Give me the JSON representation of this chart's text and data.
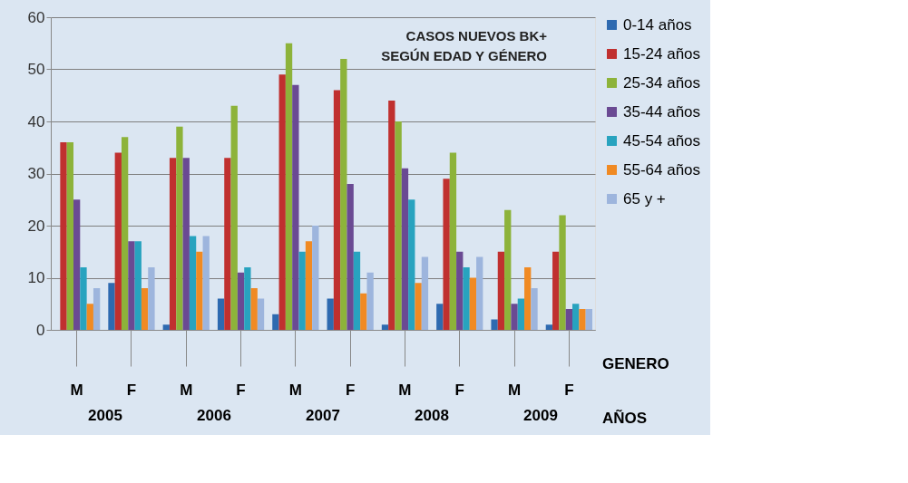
{
  "chart_data": {
    "type": "bar",
    "title": "CASOS NUEVOS BK+\nSEGÚN EDAD Y GÉNERO",
    "categories": [
      "M",
      "F",
      "M",
      "F",
      "M",
      "F",
      "M",
      "F",
      "M",
      "F"
    ],
    "series": [
      {
        "name": "0-14 años",
        "color": "#2e6ab0",
        "values": [
          0,
          9,
          1,
          6,
          3,
          6,
          1,
          5,
          2,
          1
        ]
      },
      {
        "name": "15-24 años",
        "color": "#c0302f",
        "values": [
          36,
          34,
          33,
          33,
          49,
          46,
          44,
          29,
          15,
          15
        ]
      },
      {
        "name": "25-34 años",
        "color": "#8db33a",
        "values": [
          36,
          37,
          39,
          43,
          55,
          52,
          40,
          34,
          23,
          22
        ]
      },
      {
        "name": "35-44 años",
        "color": "#6a4a93",
        "values": [
          25,
          17,
          33,
          11,
          47,
          28,
          31,
          15,
          5,
          4
        ]
      },
      {
        "name": "45-54 años",
        "color": "#28a3bf",
        "values": [
          12,
          17,
          18,
          12,
          15,
          15,
          25,
          12,
          6,
          5
        ]
      },
      {
        "name": "55-64 años",
        "color": "#f08a23",
        "values": [
          5,
          8,
          15,
          8,
          17,
          7,
          9,
          10,
          12,
          4
        ]
      },
      {
        "name": "65 y +",
        "color": "#9db5dd",
        "values": [
          8,
          12,
          18,
          6,
          20,
          11,
          14,
          14,
          8,
          4
        ]
      }
    ],
    "ylim": [
      0,
      60
    ],
    "yticks": [
      0,
      10,
      20,
      30,
      40,
      50,
      60
    ],
    "grid": "y",
    "legend": "right",
    "annotations": [
      "2005",
      "2006",
      "2007",
      "2008",
      "2009",
      "GENERO",
      "AÑOS"
    ]
  }
}
